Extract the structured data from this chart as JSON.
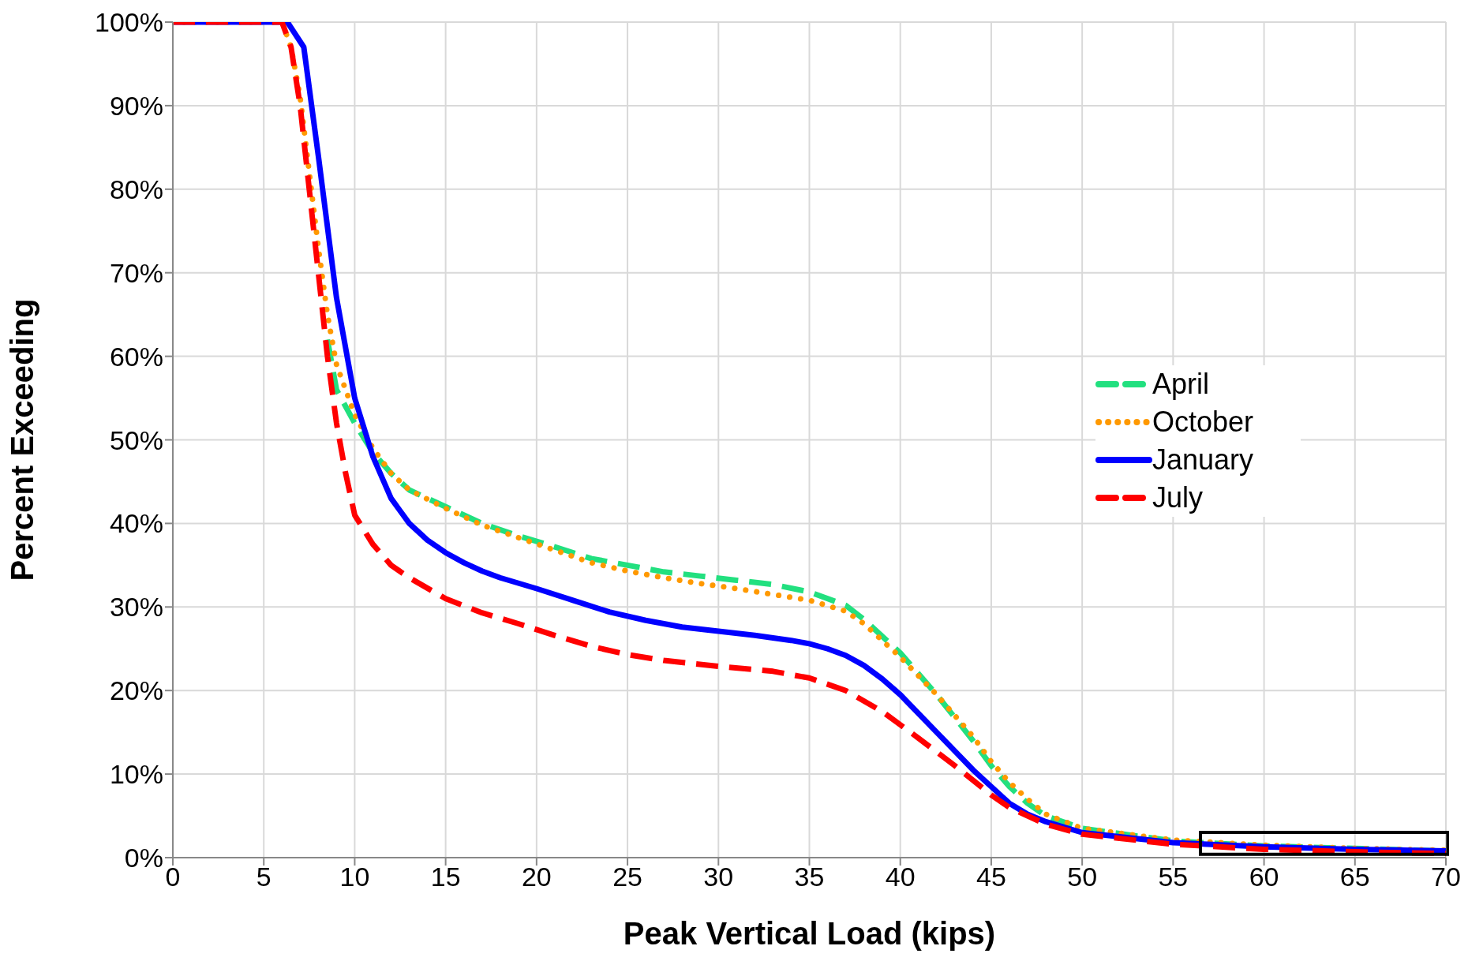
{
  "chart_data": {
    "type": "line",
    "xlabel": "Peak Vertical Load (kips)",
    "ylabel": "Percent Exceeding",
    "xlim": [
      0,
      70
    ],
    "xticks": [
      0,
      5,
      10,
      15,
      20,
      25,
      30,
      35,
      40,
      45,
      50,
      55,
      60,
      65,
      70
    ],
    "ylim": [
      0,
      100
    ],
    "yticks": [
      {
        "value": 0,
        "label": "0%"
      },
      {
        "value": 10,
        "label": "10%"
      },
      {
        "value": 20,
        "label": "20%"
      },
      {
        "value": 30,
        "label": "30%"
      },
      {
        "value": 40,
        "label": "40%"
      },
      {
        "value": 50,
        "label": "50%"
      },
      {
        "value": 60,
        "label": "60%"
      },
      {
        "value": 70,
        "label": "70%"
      },
      {
        "value": 80,
        "label": "80%"
      },
      {
        "value": 90,
        "label": "90%"
      },
      {
        "value": 100,
        "label": "100%"
      }
    ],
    "grid": true,
    "legend": "right",
    "marker": "none",
    "series": [
      {
        "name": "April",
        "color": "#22e07f",
        "line_style": "dashed",
        "x": [
          8.5,
          9,
          10,
          11,
          12,
          13,
          15,
          17,
          19,
          21,
          23,
          25,
          27,
          29,
          31,
          33,
          35,
          37,
          38,
          40,
          42,
          44,
          45,
          46,
          47,
          48,
          50,
          55,
          60,
          65,
          70
        ],
        "values": [
          62,
          56,
          52,
          48.5,
          46,
          44,
          42,
          40,
          38.5,
          37.2,
          35.8,
          35,
          34.2,
          33.7,
          33.2,
          32.7,
          31.8,
          30.2,
          28.5,
          24.5,
          19.5,
          14,
          11,
          8.5,
          6.5,
          5,
          3.5,
          2,
          1.4,
          1.1,
          0.8
        ]
      },
      {
        "name": "October",
        "color": "#ff9900",
        "line_style": "dotted",
        "x": [
          0,
          6,
          6.5,
          7,
          7.5,
          8,
          8.5,
          9,
          10,
          11,
          12,
          13,
          15,
          17,
          19,
          21,
          23,
          25,
          27,
          29,
          31,
          33,
          35,
          37,
          38,
          40,
          42,
          44,
          45,
          46,
          47,
          48,
          50,
          55,
          60,
          65,
          70
        ],
        "values": [
          100,
          100,
          97,
          91,
          82,
          73,
          65,
          59,
          53,
          49,
          46,
          44,
          41.8,
          39.8,
          38.3,
          36.8,
          35.3,
          34.3,
          33.5,
          32.8,
          32.2,
          31.5,
          30.8,
          29.5,
          28,
          24,
          19.5,
          14.5,
          11.5,
          9,
          7,
          5.2,
          3.5,
          2.1,
          1.5,
          1.1,
          0.9
        ]
      },
      {
        "name": "January",
        "color": "#0000ff",
        "line_style": "solid",
        "x": [
          0,
          6.3,
          7.2,
          8,
          9,
          10,
          11,
          12,
          13,
          14,
          15,
          16,
          17,
          18,
          20,
          22,
          24,
          26,
          28,
          30,
          32,
          34,
          35,
          36,
          37,
          38,
          39,
          40,
          42,
          44,
          45,
          46,
          47,
          48,
          50,
          55,
          60,
          65,
          70
        ],
        "values": [
          100,
          100,
          97,
          84,
          67,
          55,
          48,
          43,
          40,
          38,
          36.5,
          35.3,
          34.3,
          33.5,
          32.2,
          30.8,
          29.4,
          28.4,
          27.6,
          27.1,
          26.6,
          26,
          25.6,
          25,
          24.2,
          23,
          21.4,
          19.5,
          15,
          10.5,
          8.5,
          6.5,
          5.2,
          4.3,
          3,
          1.8,
          1.3,
          1,
          0.8
        ]
      },
      {
        "name": "July",
        "color": "#ff0000",
        "line_style": "dashed",
        "x": [
          0,
          6,
          6.5,
          7,
          7.5,
          8,
          8.5,
          9,
          9.5,
          10,
          11,
          12,
          13,
          15,
          17,
          19,
          21,
          23,
          25,
          27,
          30,
          33,
          35,
          37,
          39,
          41,
          43,
          45,
          46,
          48,
          50,
          55,
          60,
          65,
          70
        ],
        "values": [
          100,
          100,
          97,
          90,
          80,
          70,
          60,
          52,
          46,
          41,
          37.5,
          35,
          33.5,
          31,
          29.3,
          28,
          26.6,
          25.3,
          24.3,
          23.6,
          22.9,
          22.3,
          21.5,
          20,
          17.5,
          14.3,
          11,
          7.5,
          6,
          4,
          2.8,
          1.6,
          1,
          0.7,
          0.5
        ]
      }
    ]
  }
}
